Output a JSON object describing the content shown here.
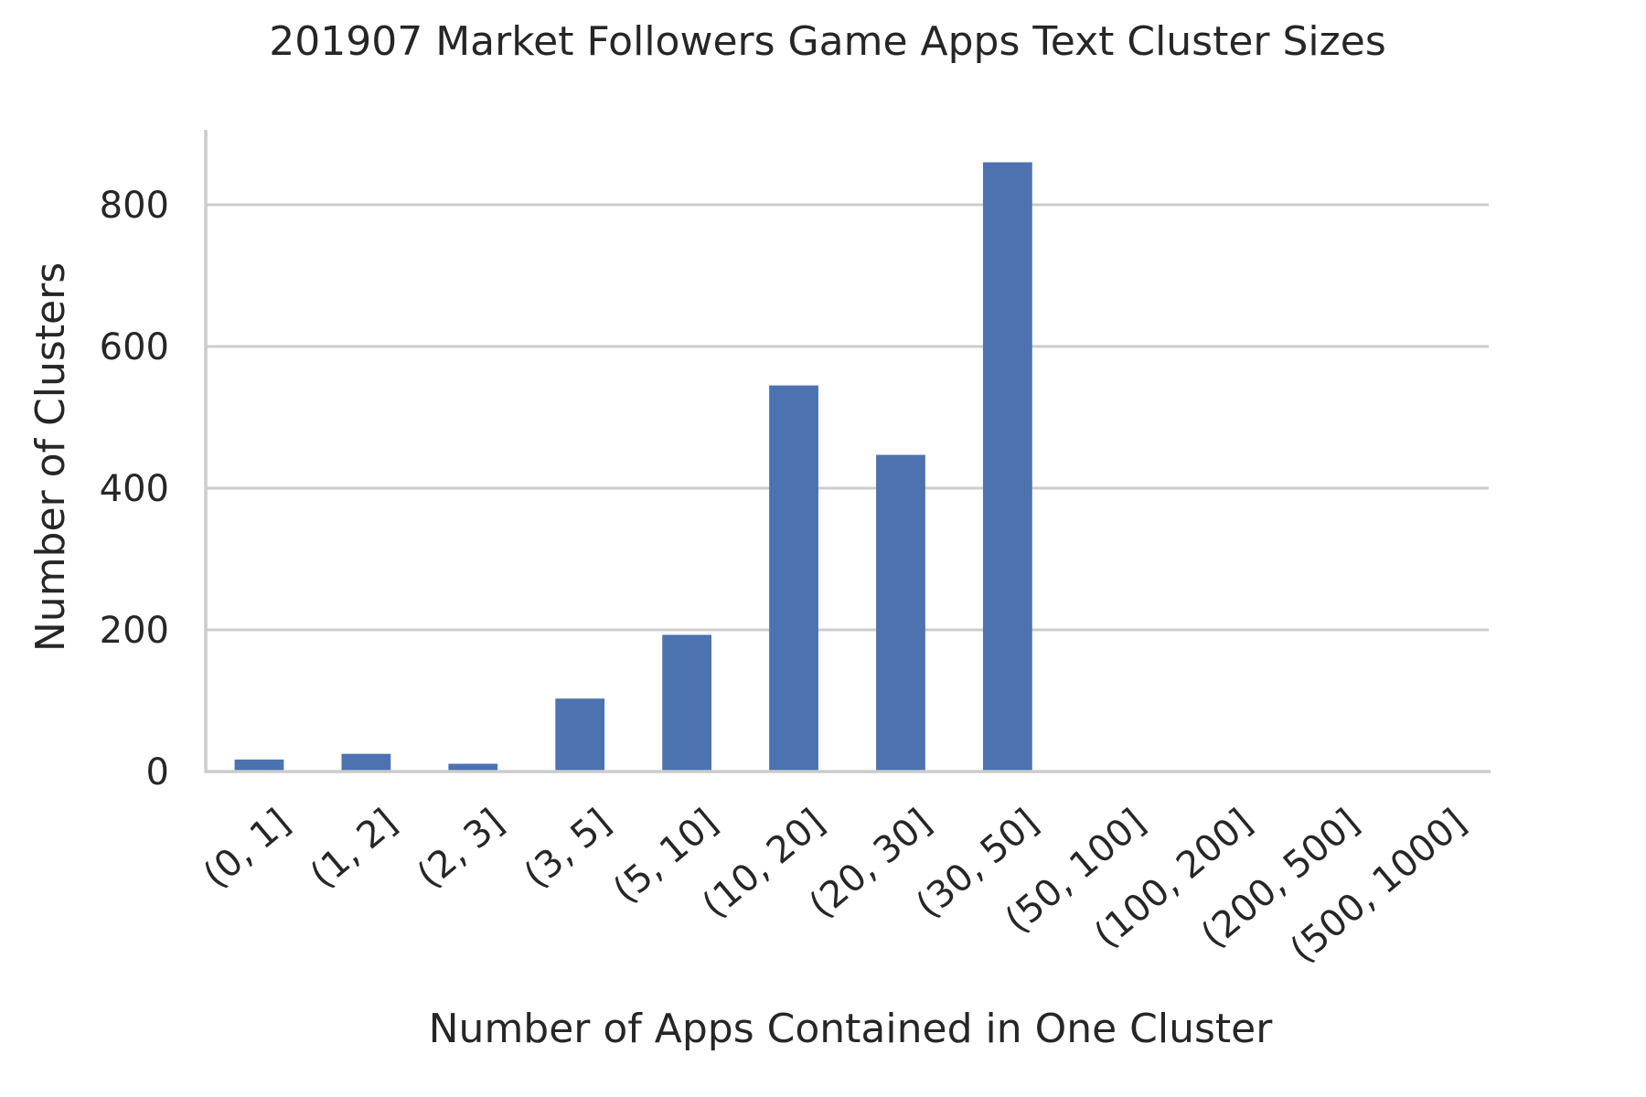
{
  "chart_data": {
    "type": "bar",
    "title": "201907 Market Followers Game Apps Text Cluster Sizes",
    "xlabel": "Number of Apps Contained in One Cluster",
    "ylabel": "Number of Clusters",
    "categories": [
      "(0, 1]",
      "(1, 2]",
      "(2, 3]",
      "(3, 5]",
      "(5, 10]",
      "(10, 20]",
      "(20, 30]",
      "(30, 50]",
      "(50, 100]",
      "(100, 200]",
      "(200, 500]",
      "(500, 1000]"
    ],
    "values": [
      17,
      25,
      11,
      103,
      193,
      545,
      447,
      860,
      0,
      0,
      0,
      0
    ],
    "yticks": [
      0,
      200,
      400,
      600,
      800
    ],
    "ylim": [
      0,
      905
    ],
    "grid": true,
    "colors": {
      "bar": "#4c72b0",
      "grid": "#cccccc",
      "axis": "#cccccc",
      "text": "#262626"
    }
  }
}
